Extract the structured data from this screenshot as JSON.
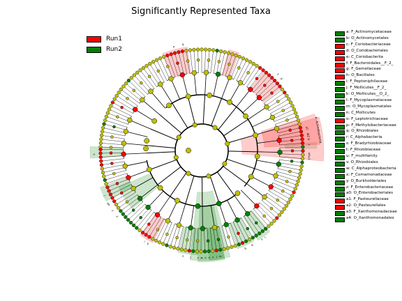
{
  "chart_data": {
    "type": "cladogram",
    "title": "Significantly Represented Taxa",
    "legend": [
      {
        "name": "Run1",
        "color": "#ff0000"
      },
      {
        "name": "Run2",
        "color": "#007f00"
      }
    ],
    "node_neutral_color": "#bfbf00",
    "clade_labels": [
      {
        "key": "a",
        "name": "F_Actinomycetaceae",
        "group": "Run2"
      },
      {
        "key": "b",
        "name": "O_Actinomycetales",
        "group": "Run2"
      },
      {
        "key": "c",
        "name": "F_Coriobacteriaceae",
        "group": "Run1"
      },
      {
        "key": "d",
        "name": "O_Coriobacteriales",
        "group": "Run1"
      },
      {
        "key": "e",
        "name": "C_Coriobacteriia",
        "group": "Run1"
      },
      {
        "key": "f",
        "name": "F_Bacteroidales__F_2_",
        "group": "Run1"
      },
      {
        "key": "g",
        "name": "F_Gemellaceae",
        "group": "Run1"
      },
      {
        "key": "h",
        "name": "O_Bacillales",
        "group": "Run1"
      },
      {
        "key": "i",
        "name": "F_Peptoniphilaceae",
        "group": "Run2"
      },
      {
        "key": "j",
        "name": "F_Mollicutes__F_2_",
        "group": "Run2"
      },
      {
        "key": "k",
        "name": "O_Mollicutes__O_2_",
        "group": "Run2"
      },
      {
        "key": "l",
        "name": "F_Mycoplasmataceae",
        "group": "Run2"
      },
      {
        "key": "m",
        "name": "O_Mycoplasmatales",
        "group": "Run2"
      },
      {
        "key": "n",
        "name": "C_Mollicutes",
        "group": "Run2"
      },
      {
        "key": "o",
        "name": "F_Leptotrichiaceae",
        "group": "Run1"
      },
      {
        "key": "p",
        "name": "F_Methylobacteriaceae",
        "group": "Run2"
      },
      {
        "key": "q",
        "name": "O_Rhizobiales",
        "group": "Run2"
      },
      {
        "key": "r",
        "name": "C_Alphabacteria",
        "group": "Run2"
      },
      {
        "key": "s",
        "name": "F_Bradyrhizobiaceae",
        "group": "Run2"
      },
      {
        "key": "t",
        "name": "F_Rhizobiaceae",
        "group": "Run2"
      },
      {
        "key": "u",
        "name": "F_multifamily",
        "group": "Run2"
      },
      {
        "key": "v",
        "name": "O_Rhizobiales",
        "group": "Run2"
      },
      {
        "key": "w",
        "name": "C_Alphaproteobacteria",
        "group": "Run2"
      },
      {
        "key": "x",
        "name": "F_Comamonadaceae",
        "group": "Run2"
      },
      {
        "key": "y",
        "name": "O_Burkholderiales",
        "group": "Run2"
      },
      {
        "key": "z",
        "name": "F_Enterobacteriaceae",
        "group": "Run2"
      },
      {
        "key": "a0",
        "name": "O_Enterobacteriales",
        "group": "Run2"
      },
      {
        "key": "a1",
        "name": "F_Pasteurellaceae",
        "group": "Run1"
      },
      {
        "key": "a2",
        "name": "O_Pasteurellales",
        "group": "Run1"
      },
      {
        "key": "a3",
        "name": "F_Xanthomonadaceae",
        "group": "Run2"
      },
      {
        "key": "a4",
        "name": "O_Xanthomonadales",
        "group": "Run2"
      }
    ],
    "sector_labels": [
      {
        "text": "a"
      },
      {
        "text": "b"
      },
      {
        "text": "c"
      },
      {
        "text": "d"
      },
      {
        "text": "e"
      },
      {
        "text": "f"
      },
      {
        "text": "g"
      },
      {
        "text": "h"
      },
      {
        "text": "i"
      },
      {
        "text": "j"
      },
      {
        "text": "k"
      },
      {
        "text": "l"
      },
      {
        "text": "m"
      },
      {
        "text": "n"
      },
      {
        "text": "o"
      },
      {
        "text": "p"
      },
      {
        "text": "q"
      },
      {
        "text": "r"
      },
      {
        "text": "s"
      },
      {
        "text": "t"
      },
      {
        "text": "u"
      },
      {
        "text": "v"
      },
      {
        "text": "w"
      },
      {
        "text": "x"
      },
      {
        "text": "y"
      },
      {
        "text": "z"
      },
      {
        "text": "a0"
      },
      {
        "text": "a1"
      },
      {
        "text": "a2"
      },
      {
        "text": "a3"
      },
      {
        "text": "a4"
      },
      {
        "text": "e: Actinobacteria"
      }
    ]
  }
}
